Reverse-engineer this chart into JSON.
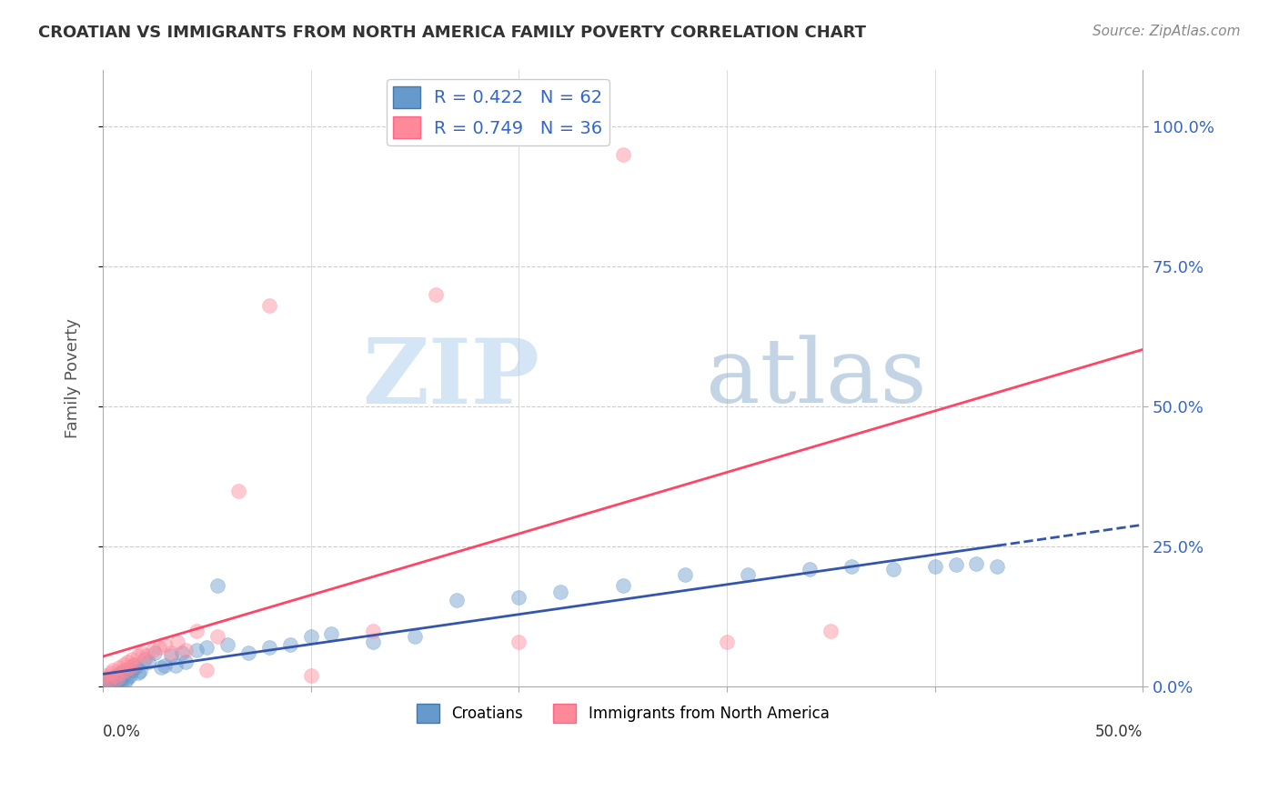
{
  "title": "CROATIAN VS IMMIGRANTS FROM NORTH AMERICA FAMILY POVERTY CORRELATION CHART",
  "source": "Source: ZipAtlas.com",
  "ylabel": "Family Poverty",
  "croatian_R": 0.422,
  "croatian_N": 62,
  "immigrants_R": 0.749,
  "immigrants_N": 36,
  "blue_color": "#6699CC",
  "pink_color": "#FF8899",
  "blue_line_color": "#3355AA",
  "pink_line_color": "#FF4466",
  "watermark_zip": "ZIP",
  "watermark_atlas": "atlas",
  "watermark_color_zip": "#AACCEE",
  "watermark_color_atlas": "#88AACC",
  "background_color": "#FFFFFF",
  "xlim": [
    0.0,
    0.5
  ],
  "ylim": [
    0.0,
    1.1
  ],
  "yticks": [
    0.0,
    0.25,
    0.5,
    0.75,
    1.0
  ],
  "ytick_labels": [
    "0.0%",
    "25.0%",
    "50.0%",
    "75.0%",
    "100.0%"
  ],
  "croatian_x": [
    0.001,
    0.002,
    0.002,
    0.003,
    0.003,
    0.004,
    0.004,
    0.005,
    0.005,
    0.005,
    0.006,
    0.006,
    0.006,
    0.007,
    0.007,
    0.008,
    0.008,
    0.009,
    0.009,
    0.01,
    0.01,
    0.011,
    0.012,
    0.013,
    0.014,
    0.015,
    0.016,
    0.017,
    0.018,
    0.02,
    0.022,
    0.025,
    0.028,
    0.03,
    0.033,
    0.035,
    0.038,
    0.04,
    0.045,
    0.05,
    0.055,
    0.06,
    0.07,
    0.08,
    0.09,
    0.1,
    0.11,
    0.13,
    0.15,
    0.17,
    0.2,
    0.22,
    0.25,
    0.28,
    0.31,
    0.34,
    0.36,
    0.38,
    0.4,
    0.41,
    0.42,
    0.43
  ],
  "croatian_y": [
    0.005,
    0.008,
    0.003,
    0.01,
    0.004,
    0.012,
    0.006,
    0.015,
    0.007,
    0.003,
    0.018,
    0.01,
    0.004,
    0.02,
    0.006,
    0.022,
    0.012,
    0.025,
    0.008,
    0.018,
    0.03,
    0.01,
    0.015,
    0.02,
    0.03,
    0.04,
    0.035,
    0.025,
    0.028,
    0.05,
    0.045,
    0.06,
    0.035,
    0.038,
    0.055,
    0.038,
    0.06,
    0.045,
    0.065,
    0.07,
    0.18,
    0.075,
    0.06,
    0.07,
    0.075,
    0.09,
    0.095,
    0.08,
    0.09,
    0.155,
    0.16,
    0.17,
    0.18,
    0.2,
    0.2,
    0.21,
    0.215,
    0.21,
    0.215,
    0.218,
    0.22,
    0.215
  ],
  "immigrants_x": [
    0.001,
    0.002,
    0.003,
    0.004,
    0.005,
    0.006,
    0.007,
    0.008,
    0.009,
    0.01,
    0.011,
    0.012,
    0.013,
    0.014,
    0.015,
    0.017,
    0.019,
    0.021,
    0.024,
    0.027,
    0.03,
    0.033,
    0.036,
    0.04,
    0.045,
    0.05,
    0.055,
    0.065,
    0.08,
    0.1,
    0.13,
    0.16,
    0.2,
    0.25,
    0.3,
    0.35
  ],
  "immigrants_y": [
    0.02,
    0.015,
    0.01,
    0.025,
    0.03,
    0.02,
    0.015,
    0.035,
    0.025,
    0.04,
    0.03,
    0.045,
    0.035,
    0.05,
    0.04,
    0.055,
    0.06,
    0.055,
    0.065,
    0.07,
    0.075,
    0.06,
    0.08,
    0.065,
    0.1,
    0.03,
    0.09,
    0.35,
    0.68,
    0.02,
    0.1,
    0.7,
    0.08,
    0.95,
    0.08,
    0.1
  ]
}
